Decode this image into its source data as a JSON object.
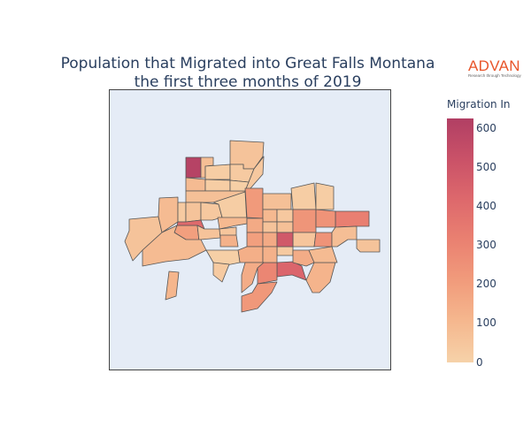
{
  "header": {
    "title_line1": "Population that Migrated into Great Falls Montana",
    "title_line2": "the first three months of 2019"
  },
  "logo": {
    "brand": "ADVAN",
    "tagline": "Research through Technology",
    "color": "#e8552a"
  },
  "colorbar": {
    "title": "Migration In",
    "ticks": [
      "600",
      "500",
      "400",
      "300",
      "200",
      "100",
      "0"
    ],
    "min": 0,
    "max": 640,
    "colorscale": [
      "#f6d2a9",
      "#f5b78e",
      "#f19c7c",
      "#ea8171",
      "#dd686c",
      "#ca5268",
      "#b13f64"
    ]
  },
  "map": {
    "background": "#e5ecf6",
    "border_color": "#555555",
    "regions": [
      {
        "value": 620
      },
      {
        "value": 80
      },
      {
        "value": 60
      },
      {
        "value": 20
      },
      {
        "value": 30
      },
      {
        "value": 90
      },
      {
        "value": 20
      },
      {
        "value": 70
      },
      {
        "value": 10
      },
      {
        "value": 40
      },
      {
        "value": 60
      },
      {
        "value": 200
      },
      {
        "value": 90
      },
      {
        "value": 30
      },
      {
        "value": 60
      },
      {
        "value": 40
      },
      {
        "value": 20
      },
      {
        "value": 420
      },
      {
        "value": 100
      },
      {
        "value": 60
      },
      {
        "value": 50
      },
      {
        "value": 90
      },
      {
        "value": 130
      },
      {
        "value": 220
      },
      {
        "value": 70
      },
      {
        "value": 100
      },
      {
        "value": 160
      },
      {
        "value": 40
      },
      {
        "value": 200
      },
      {
        "value": 60
      },
      {
        "value": 70
      },
      {
        "value": 160
      },
      {
        "value": 20
      },
      {
        "value": 240
      },
      {
        "value": 50
      },
      {
        "value": 30
      },
      {
        "value": 500
      },
      {
        "value": 250
      },
      {
        "value": 440
      },
      {
        "value": 300
      },
      {
        "value": 230
      },
      {
        "value": 150
      },
      {
        "value": 120
      },
      {
        "value": 90
      },
      {
        "value": 330
      },
      {
        "value": 250
      },
      {
        "value": 80
      },
      {
        "value": 60
      },
      {
        "value": 140
      },
      {
        "value": 130
      },
      {
        "value": 150
      },
      {
        "value": 20
      },
      {
        "value": 10
      },
      {
        "value": 110
      },
      {
        "value": 30
      }
    ]
  }
}
